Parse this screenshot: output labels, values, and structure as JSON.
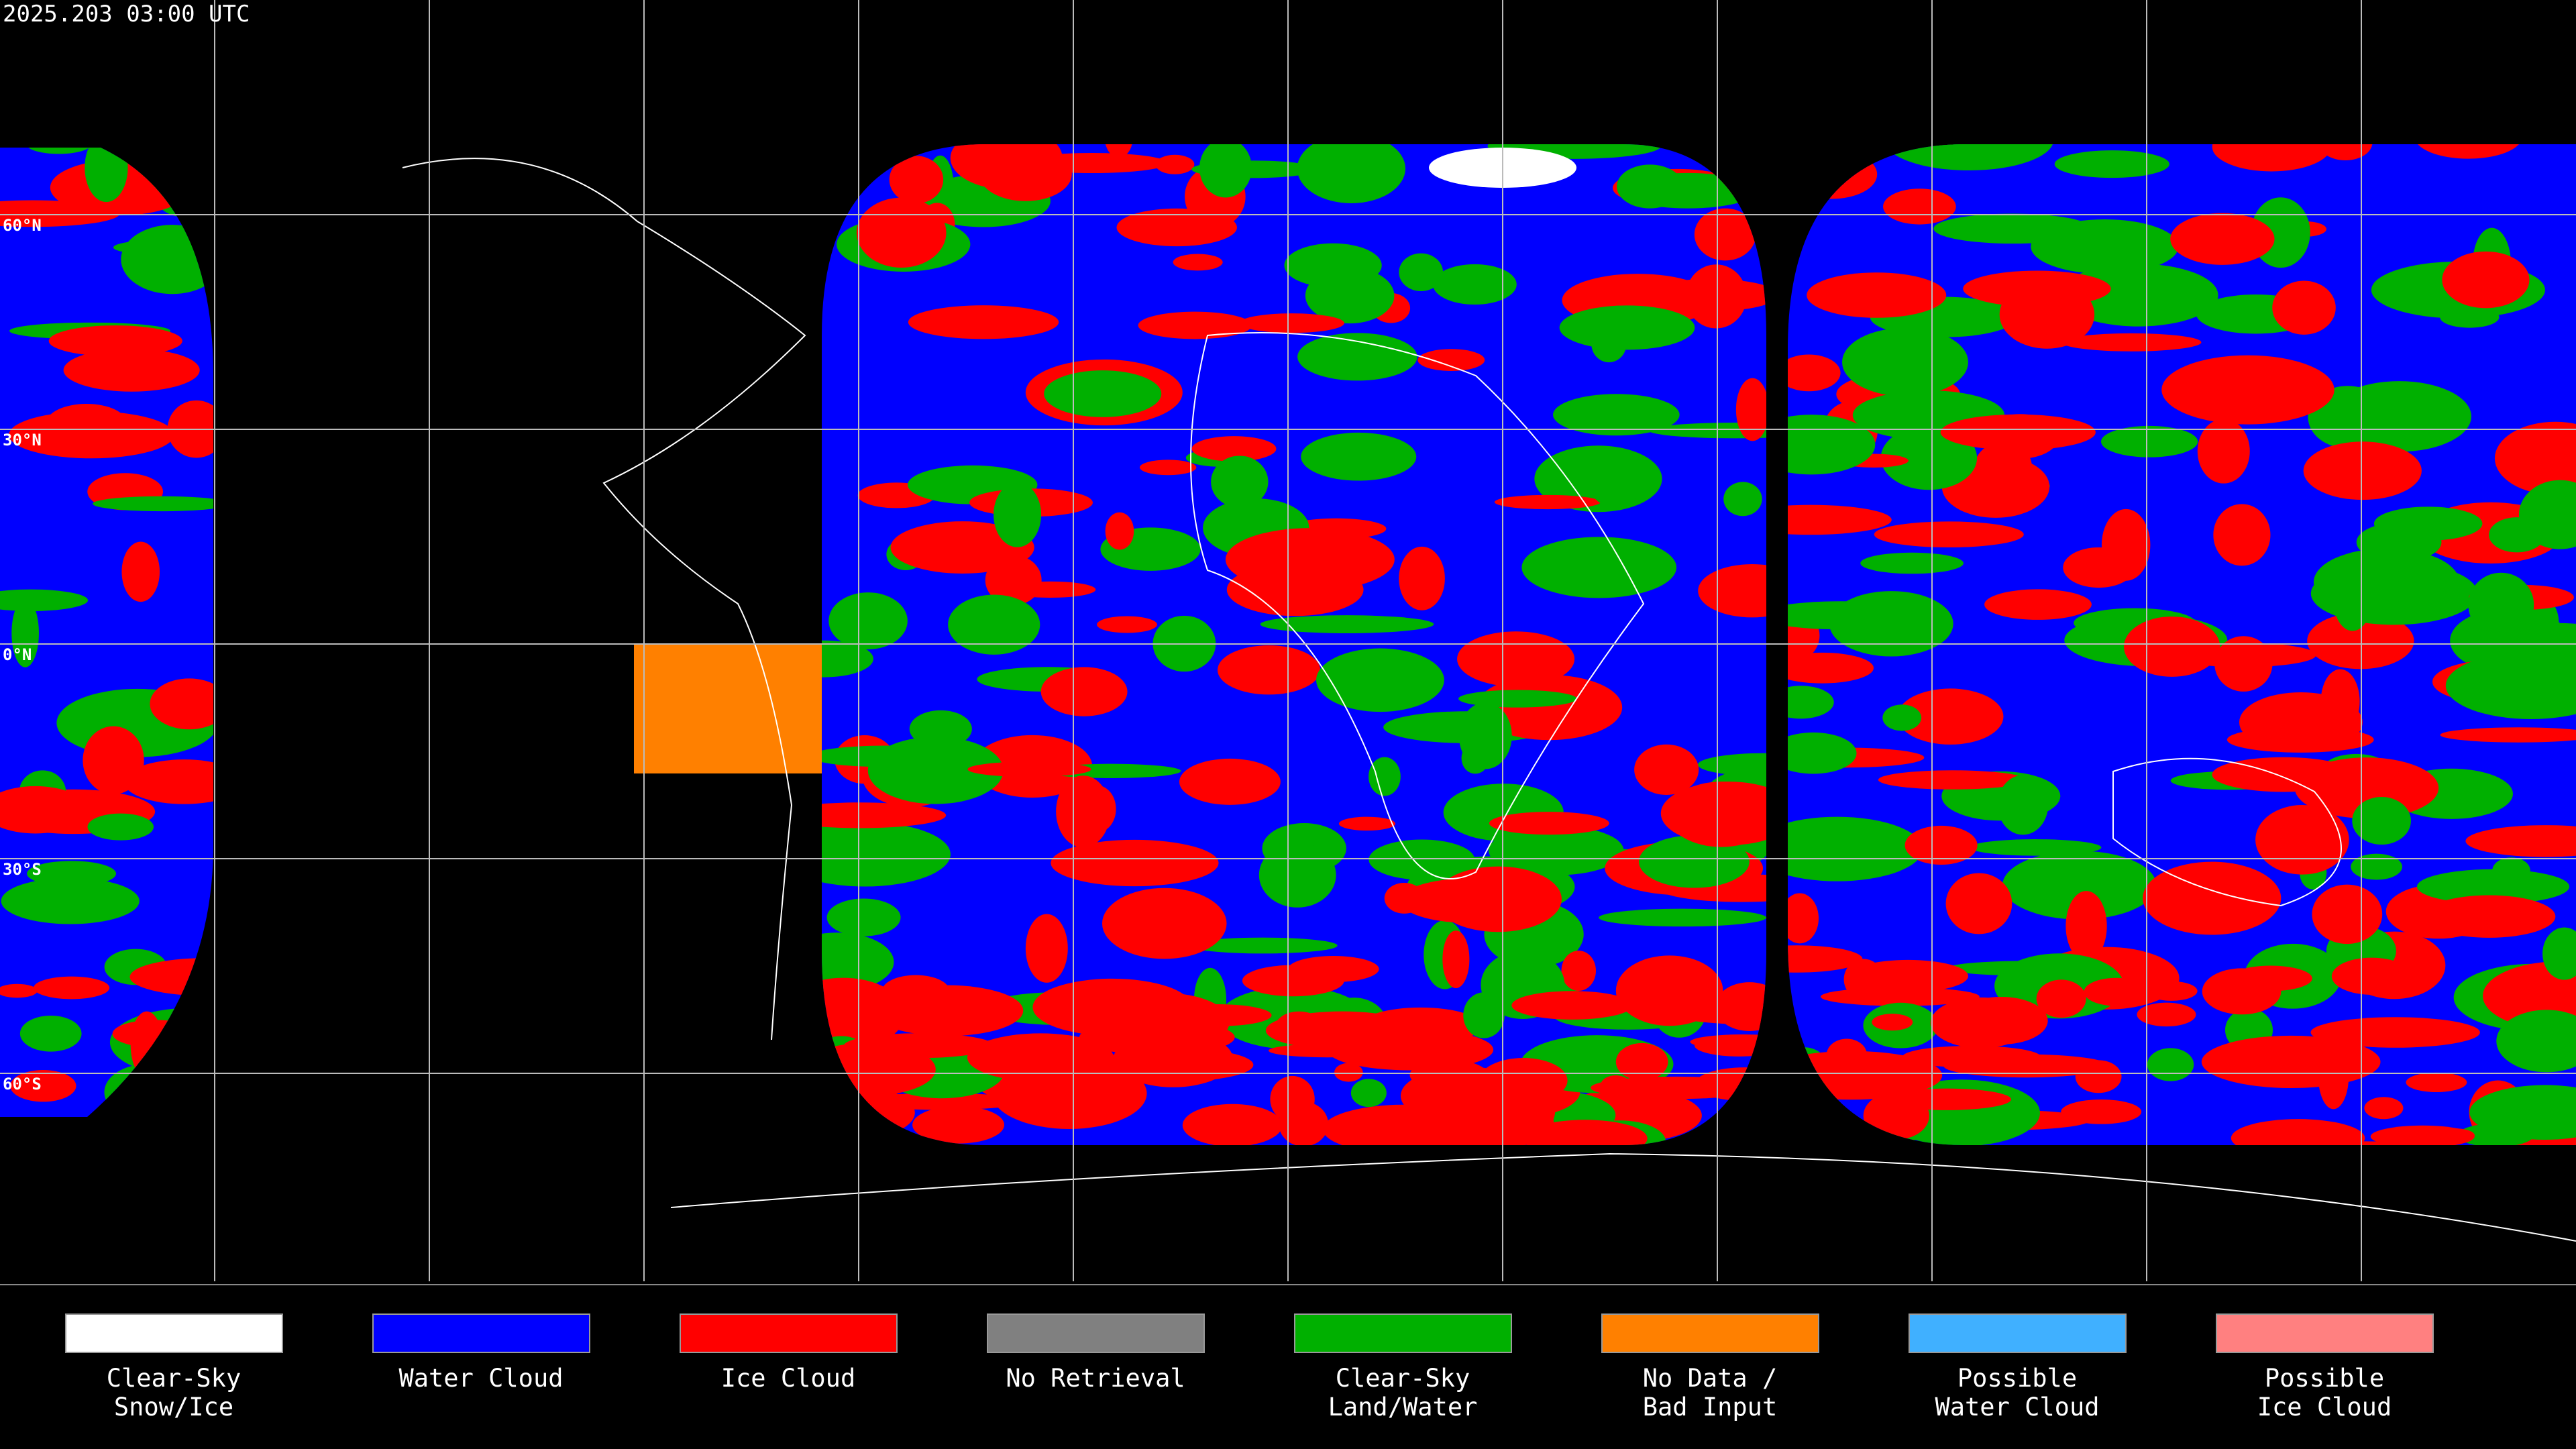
{
  "header": {
    "timestamp": "2025.203 03:00 UTC"
  },
  "map": {
    "lat_labels": [
      "60°N",
      "30°N",
      "0°N",
      "30°S",
      "60°S"
    ]
  },
  "legend": [
    {
      "lines": [
        "Clear-Sky",
        "Snow/Ice"
      ],
      "color": "#ffffff"
    },
    {
      "lines": [
        "Water Cloud"
      ],
      "color": "#0000ff"
    },
    {
      "lines": [
        "Ice Cloud"
      ],
      "color": "#ff0000"
    },
    {
      "lines": [
        "No Retrieval"
      ],
      "color": "#808080"
    },
    {
      "lines": [
        "Clear-Sky",
        "Land/Water"
      ],
      "color": "#00b000"
    },
    {
      "lines": [
        "No Data /",
        "Bad Input"
      ],
      "color": "#ff8000"
    },
    {
      "lines": [
        "Possible",
        "Water Cloud"
      ],
      "color": "#40b0ff"
    },
    {
      "lines": [
        "Possible",
        "Ice Cloud"
      ],
      "color": "#ff8080"
    }
  ]
}
